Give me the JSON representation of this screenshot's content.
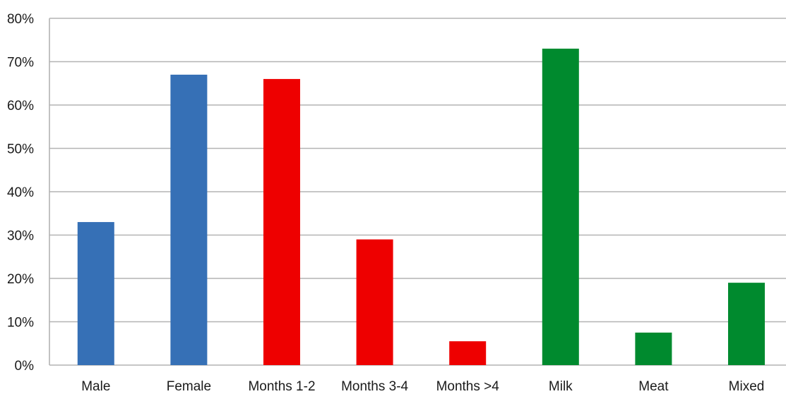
{
  "chart_data": {
    "type": "bar",
    "title": "",
    "xlabel": "",
    "ylabel": "",
    "categories": [
      "Male",
      "Female",
      "Months 1-2",
      "Months 3-4",
      "Months >4",
      "Milk",
      "Meat",
      "Mixed"
    ],
    "values": [
      33,
      67,
      66,
      29,
      5.5,
      73,
      7.5,
      19
    ],
    "bar_colors": [
      "#3670b6",
      "#3670b6",
      "#ee0000",
      "#ee0000",
      "#ee0000",
      "#008a2e",
      "#008a2e",
      "#008a2e"
    ],
    "ylim": [
      0,
      80
    ],
    "yticks": [
      0,
      10,
      20,
      30,
      40,
      50,
      60,
      70,
      80
    ],
    "ytick_format": "percent",
    "grid": true,
    "legend": "none"
  }
}
